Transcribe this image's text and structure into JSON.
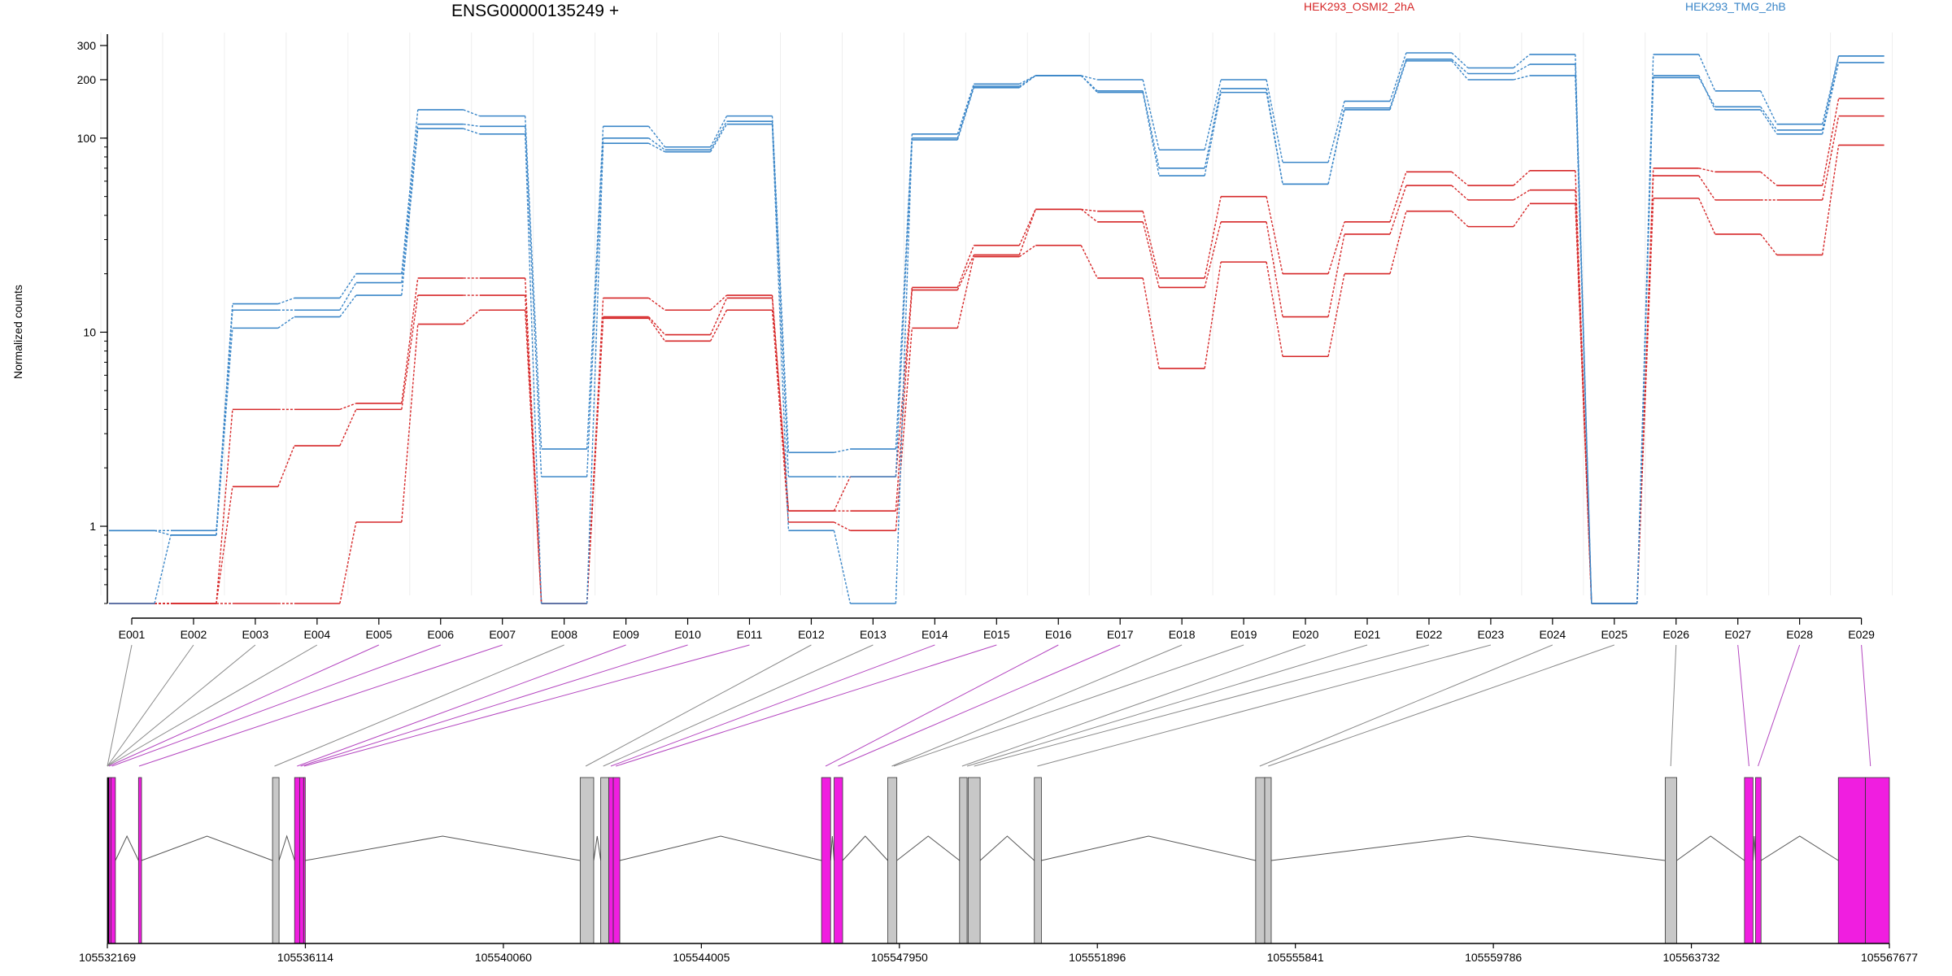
{
  "header": {
    "title": "ENSG00000135249 +",
    "y_label": "Normalized counts"
  },
  "legend": [
    {
      "name": "HEK293_OSMI2_2hA",
      "color": "#d62728"
    },
    {
      "name": "HEK293_TMG_2hB",
      "color": "#3a86c8"
    }
  ],
  "chart_data": {
    "type": "line",
    "title": "ENSG00000135249 +",
    "xlabel": "",
    "ylabel": "Normalized counts",
    "y_scale": "log",
    "ylim": [
      0.4,
      350
    ],
    "y_ticks": [
      1,
      10,
      100,
      200,
      300
    ],
    "categories": [
      "E001",
      "E002",
      "E003",
      "E004",
      "E005",
      "E006",
      "E007",
      "E008",
      "E009",
      "E010",
      "E011",
      "E012",
      "E013",
      "E014",
      "E015",
      "E016",
      "E017",
      "E018",
      "E019",
      "E020",
      "E021",
      "E022",
      "E023",
      "E024",
      "E025",
      "E026",
      "E027",
      "E028",
      "E029"
    ],
    "groups": [
      {
        "name": "HEK293_OSMI2_2hA",
        "color": "#d62728",
        "series": [
          {
            "values": [
              0.4,
              0.4,
              4,
              4,
              4.3,
              19,
              19,
              0.4,
              15,
              13,
              15.5,
              1.2,
              1.8,
              17,
              28,
              43,
              42,
              19,
              50,
              20,
              37,
              67,
              57,
              68,
              0.4,
              70,
              67,
              57,
              160
            ]
          },
          {
            "values": [
              0.4,
              0.4,
              1.6,
              2.6,
              4,
              15.5,
              15.5,
              0.4,
              12,
              9.7,
              15,
              1.2,
              1.2,
              16.5,
              25,
              43,
              37,
              17,
              37,
              12,
              32,
              57,
              48,
              54,
              0.4,
              64,
              48,
              48,
              130
            ]
          },
          {
            "values": [
              0.4,
              0.4,
              0.4,
              0.4,
              1.05,
              11,
              13,
              0.4,
              11.8,
              9,
              13,
              1.05,
              0.95,
              10.5,
              24.5,
              28,
              19,
              6.5,
              23,
              7.5,
              20,
              42,
              35,
              46,
              0.4,
              49,
              32,
              25,
              92
            ]
          }
        ]
      },
      {
        "name": "HEK293_TMG_2hB",
        "color": "#3a86c8",
        "series": [
          {
            "values": [
              0.95,
              0.95,
              14,
              15,
              20,
              140,
              130,
              2.5,
              115,
              90,
              130,
              2.4,
              2.5,
              105,
              190,
              210,
              200,
              87,
              200,
              75,
              155,
              275,
              230,
              270,
              0.4,
              270,
              175,
              118,
              265
            ]
          },
          {
            "values": [
              0.95,
              0.9,
              13,
              13,
              18,
              118,
              115,
              1.8,
              100,
              87,
              122,
              1.8,
              1.8,
              100,
              185,
              210,
              175,
              70,
              180,
              58,
              143,
              255,
              215,
              240,
              0.4,
              205,
              145,
              110,
              265
            ]
          },
          {
            "values": [
              0.4,
              0.9,
              10.5,
              12,
              15.5,
              112,
              105,
              0.4,
              94,
              85,
              118,
              0.95,
              0.4,
              98,
              182,
              210,
              172,
              64,
              172,
              58,
              140,
              250,
              200,
              210,
              0.4,
              210,
              140,
              105,
              245
            ]
          }
        ]
      }
    ],
    "genomic_ticks": [
      "105532169",
      "105536114",
      "105540060",
      "105544005",
      "105547950",
      "105551896",
      "105555841",
      "105559786",
      "105563732",
      "105567677"
    ],
    "gene_model": {
      "start": 105532169,
      "end": 105567677,
      "exons": [
        {
          "id": "E001",
          "start": 105532169,
          "end": 105532240,
          "highlight": true
        },
        {
          "id": "E002",
          "start": 105532240,
          "end": 105532329,
          "highlight": true
        },
        {
          "id": "E003",
          "start": 105532790,
          "end": 105532850,
          "highlight": true
        },
        {
          "id": "E004",
          "start": 105535460,
          "end": 105535590,
          "highlight": false
        },
        {
          "id": "E005",
          "start": 105535900,
          "end": 105536000,
          "highlight": true
        },
        {
          "id": "E006",
          "start": 105536000,
          "end": 105536080,
          "highlight": true
        },
        {
          "id": "E007",
          "start": 105536080,
          "end": 105536110,
          "highlight": true
        },
        {
          "id": "E008",
          "start": 105541590,
          "end": 105541860,
          "highlight": false
        },
        {
          "id": "E009",
          "start": 105542000,
          "end": 105542160,
          "highlight": false
        },
        {
          "id": "E010",
          "start": 105542160,
          "end": 105542250,
          "highlight": true
        },
        {
          "id": "E011",
          "start": 105542250,
          "end": 105542380,
          "highlight": true
        },
        {
          "id": "E012",
          "start": 105546400,
          "end": 105546580,
          "highlight": true
        },
        {
          "id": "E013",
          "start": 105546650,
          "end": 105546820,
          "highlight": true
        },
        {
          "id": "E014",
          "start": 105547720,
          "end": 105547900,
          "highlight": false
        },
        {
          "id": "E015",
          "start": 105549150,
          "end": 105549300,
          "highlight": false
        },
        {
          "id": "E016",
          "start": 105549320,
          "end": 105549560,
          "highlight": false
        },
        {
          "id": "E017",
          "start": 105550640,
          "end": 105550780,
          "highlight": false
        },
        {
          "id": "E018",
          "start": 105555050,
          "end": 105555230,
          "highlight": false
        },
        {
          "id": "E019",
          "start": 105555230,
          "end": 105555360,
          "highlight": false
        },
        {
          "id": "E020",
          "start": 105563210,
          "end": 105563440,
          "highlight": false
        },
        {
          "id": "E021",
          "start": 105564790,
          "end": 105564960,
          "highlight": true
        },
        {
          "id": "E022",
          "start": 105565010,
          "end": 105565120,
          "highlight": true
        },
        {
          "id": "E023",
          "start": 105566660,
          "end": 105567200,
          "highlight": true
        },
        {
          "id": "E024",
          "start": 105567200,
          "end": 105567677,
          "highlight": true
        }
      ],
      "highlight_color": "#f01ee0",
      "plain_color": "#c8c8c8"
    },
    "exon_links": [
      {
        "label": "E001",
        "target": 105532169,
        "highlight": false
      },
      {
        "label": "E002",
        "target": 105532169,
        "highlight": false
      },
      {
        "label": "E003",
        "target": 105532169,
        "highlight": false
      },
      {
        "label": "E004",
        "target": 105532169,
        "highlight": false
      },
      {
        "label": "E005",
        "target": 105532200,
        "highlight": true
      },
      {
        "label": "E006",
        "target": 105532260,
        "highlight": true
      },
      {
        "label": "E007",
        "target": 105532800,
        "highlight": true
      },
      {
        "label": "E008",
        "target": 105535500,
        "highlight": false
      },
      {
        "label": "E009",
        "target": 105535950,
        "highlight": true
      },
      {
        "label": "E010",
        "target": 105536020,
        "highlight": true
      },
      {
        "label": "E011",
        "target": 105536090,
        "highlight": true
      },
      {
        "label": "E012",
        "target": 105541700,
        "highlight": false
      },
      {
        "label": "E013",
        "target": 105542050,
        "highlight": false
      },
      {
        "label": "E014",
        "target": 105542200,
        "highlight": true
      },
      {
        "label": "E015",
        "target": 105542300,
        "highlight": true
      },
      {
        "label": "E016",
        "target": 105546480,
        "highlight": true
      },
      {
        "label": "E017",
        "target": 105546730,
        "highlight": true
      },
      {
        "label": "E018",
        "target": 105547800,
        "highlight": false
      },
      {
        "label": "E019",
        "target": 105547840,
        "highlight": false
      },
      {
        "label": "E020",
        "target": 105549200,
        "highlight": false
      },
      {
        "label": "E021",
        "target": 105549300,
        "highlight": false
      },
      {
        "label": "E022",
        "target": 105549440,
        "highlight": false
      },
      {
        "label": "E023",
        "target": 105550700,
        "highlight": false
      },
      {
        "label": "E024",
        "target": 105555130,
        "highlight": false
      },
      {
        "label": "E025",
        "target": 105555300,
        "highlight": false
      },
      {
        "label": "E026",
        "target": 105563320,
        "highlight": false
      },
      {
        "label": "E027",
        "target": 105564880,
        "highlight": true
      },
      {
        "label": "E028",
        "target": 105565060,
        "highlight": true
      },
      {
        "label": "E029",
        "target": 105567300,
        "highlight": true
      }
    ],
    "grid": "vertical-faint",
    "legend_position": "top-right"
  }
}
